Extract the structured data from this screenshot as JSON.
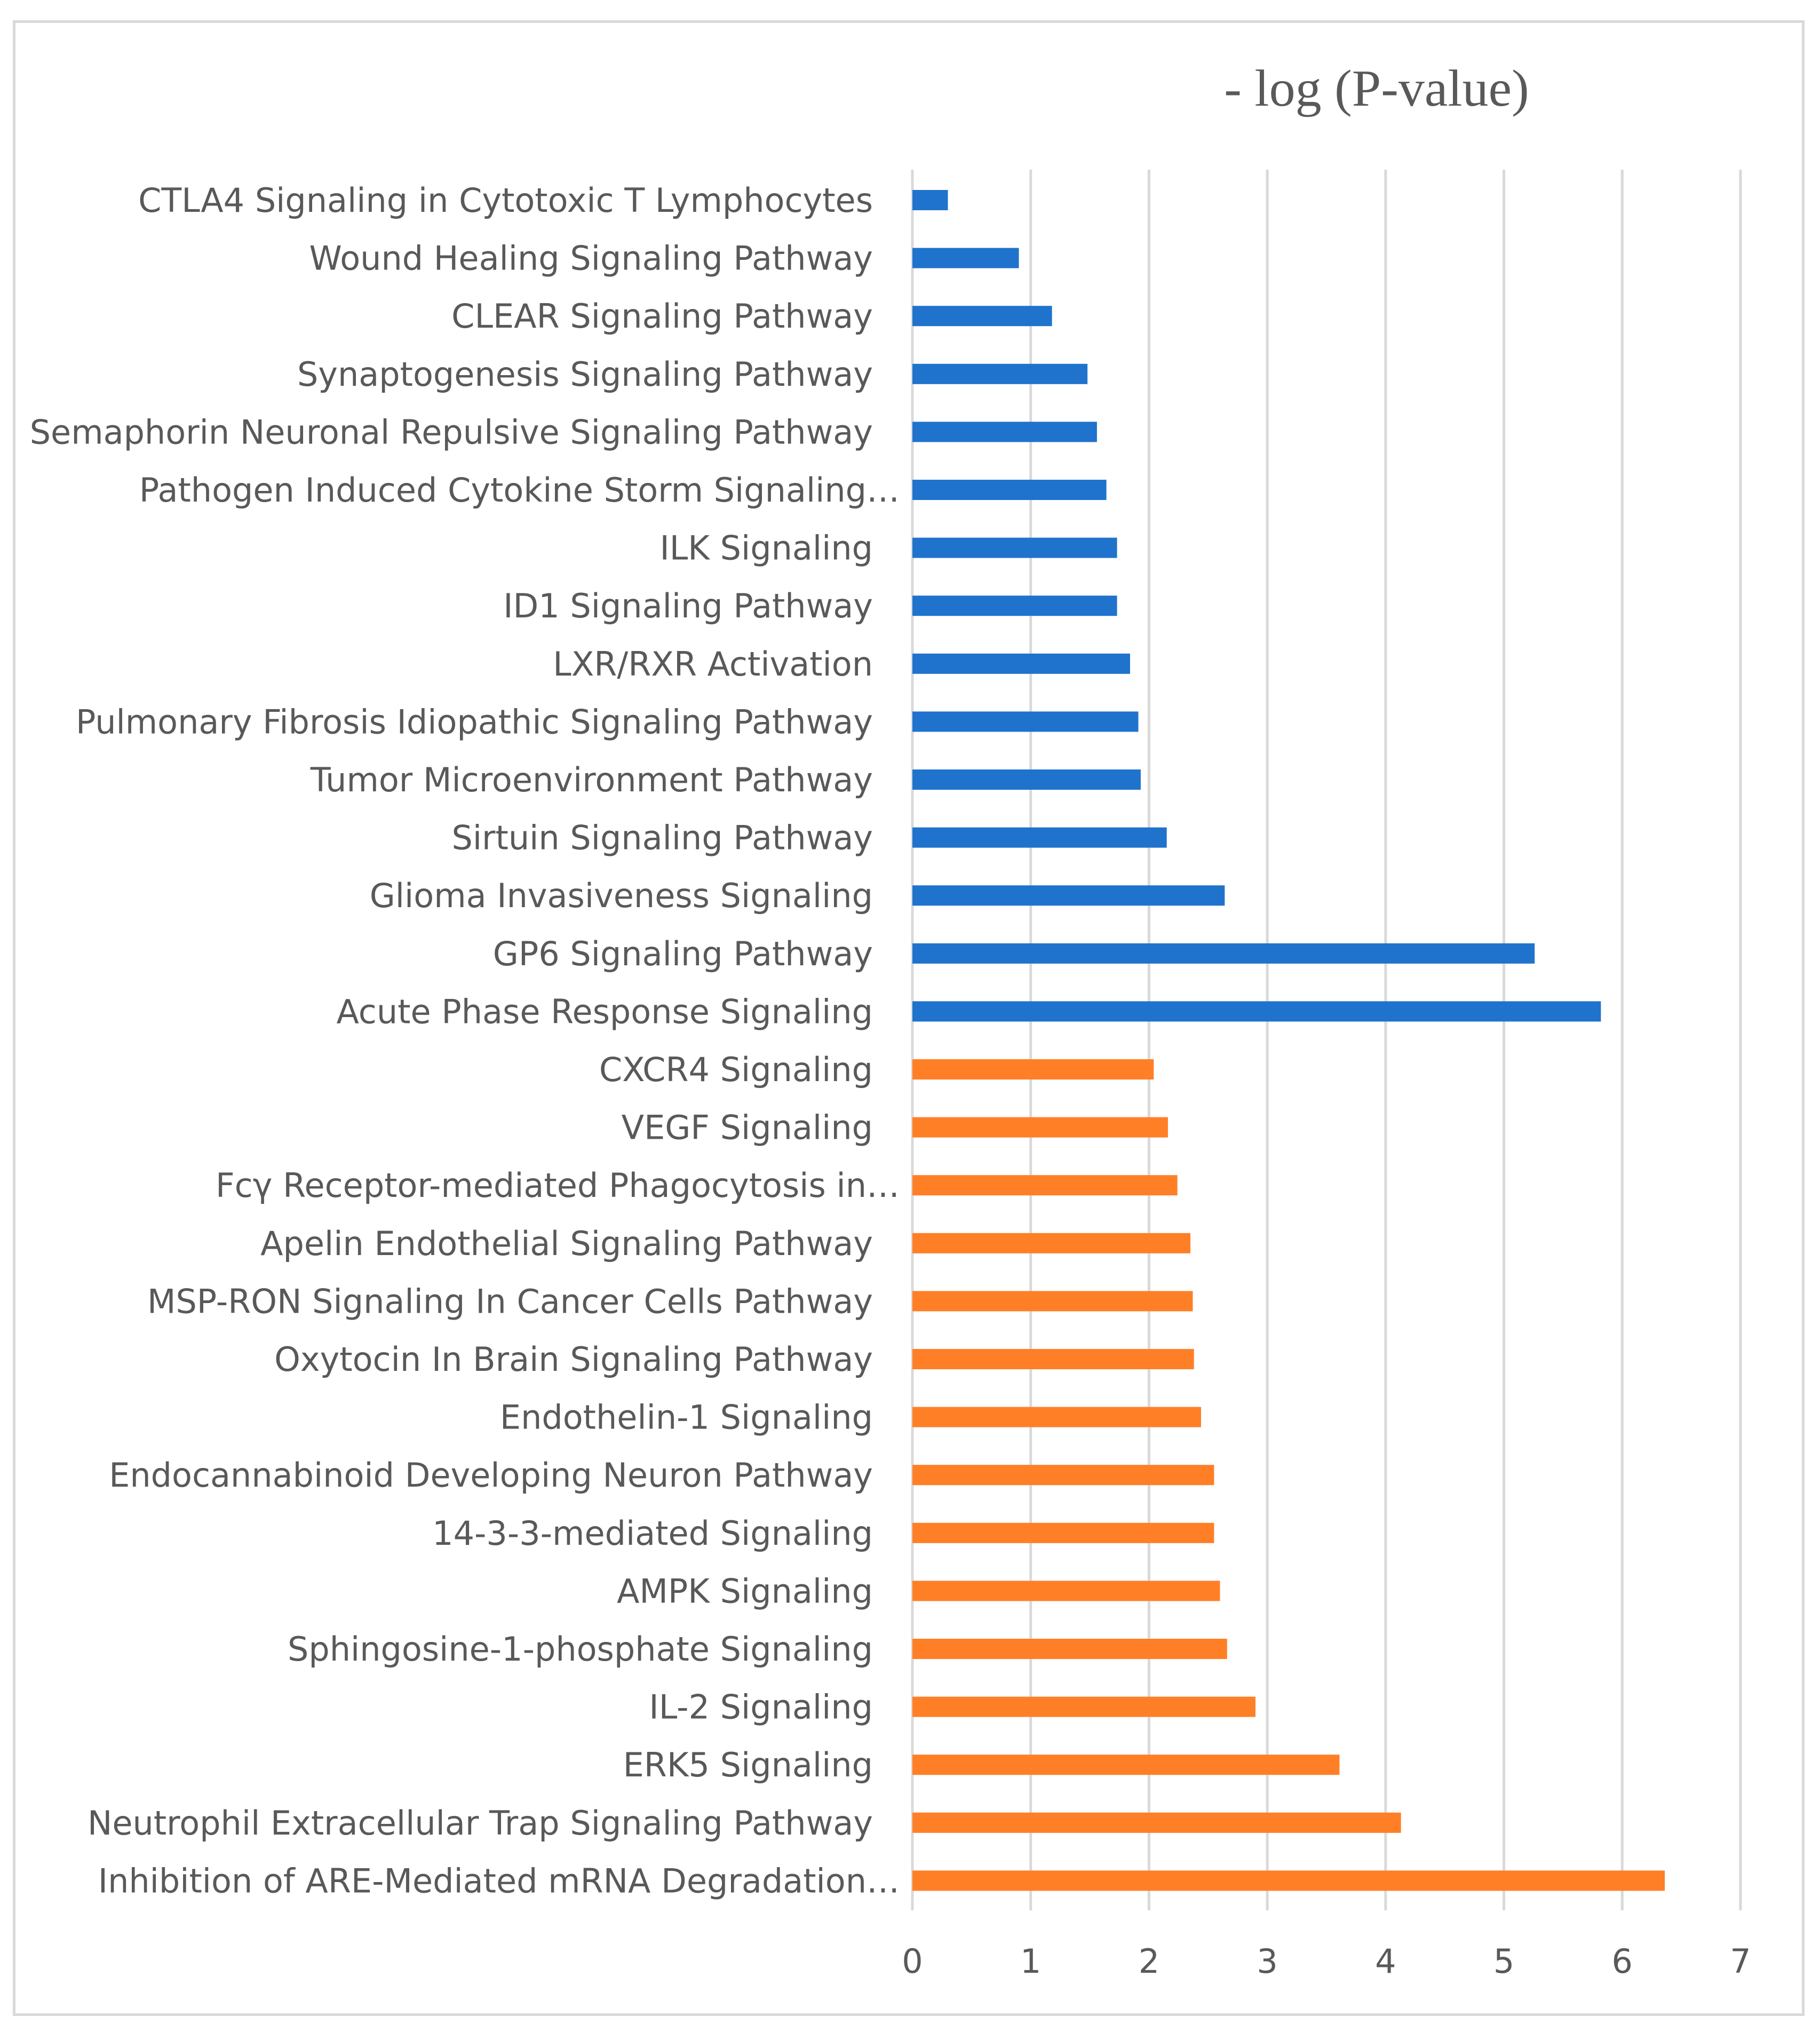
{
  "chart_data": {
    "type": "bar",
    "orientation": "horizontal",
    "title": "- log (P-value)",
    "xlabel": "",
    "ylabel": "",
    "xlim": [
      0,
      7
    ],
    "xticks": [
      0,
      1,
      2,
      3,
      4,
      5,
      6,
      7
    ],
    "grid": true,
    "legend": "none",
    "colors": {
      "blue_group": "#1f73cc",
      "orange_group": "#ff7f27"
    },
    "categories": [
      "CTLA4 Signaling in Cytotoxic T Lymphocytes",
      "Wound Healing Signaling Pathway",
      "CLEAR Signaling Pathway",
      "Synaptogenesis Signaling Pathway",
      "Semaphorin Neuronal Repulsive Signaling Pathway",
      "Pathogen Induced Cytokine Storm Signaling…",
      "ILK Signaling",
      "ID1 Signaling Pathway",
      "LXR/RXR Activation",
      "Pulmonary Fibrosis Idiopathic Signaling Pathway",
      "Tumor Microenvironment Pathway",
      "Sirtuin Signaling Pathway",
      "Glioma Invasiveness Signaling",
      "GP6 Signaling Pathway",
      "Acute Phase Response Signaling",
      "CXCR4 Signaling",
      "VEGF Signaling",
      "Fcγ Receptor-mediated Phagocytosis in…",
      "Apelin Endothelial Signaling Pathway",
      "MSP-RON Signaling In Cancer Cells Pathway",
      "Oxytocin In Brain Signaling Pathway",
      "Endothelin-1 Signaling",
      "Endocannabinoid Developing Neuron Pathway",
      "14-3-3-mediated Signaling",
      "AMPK Signaling",
      "Sphingosine-1-phosphate Signaling",
      "IL-2 Signaling",
      "ERK5 Signaling",
      "Neutrophil Extracellular Trap Signaling Pathway",
      "Inhibition of ARE-Mediated mRNA Degradation…"
    ],
    "values": [
      0.3,
      0.9,
      1.18,
      1.48,
      1.56,
      1.64,
      1.73,
      1.73,
      1.84,
      1.91,
      1.93,
      2.15,
      2.64,
      5.26,
      5.82,
      2.04,
      2.16,
      2.24,
      2.35,
      2.37,
      2.38,
      2.44,
      2.55,
      2.55,
      2.6,
      2.66,
      2.9,
      3.61,
      4.13,
      6.36
    ],
    "groups": [
      "blue",
      "blue",
      "blue",
      "blue",
      "blue",
      "blue",
      "blue",
      "blue",
      "blue",
      "blue",
      "blue",
      "blue",
      "blue",
      "blue",
      "blue",
      "orange",
      "orange",
      "orange",
      "orange",
      "orange",
      "orange",
      "orange",
      "orange",
      "orange",
      "orange",
      "orange",
      "orange",
      "orange",
      "orange",
      "orange"
    ]
  }
}
